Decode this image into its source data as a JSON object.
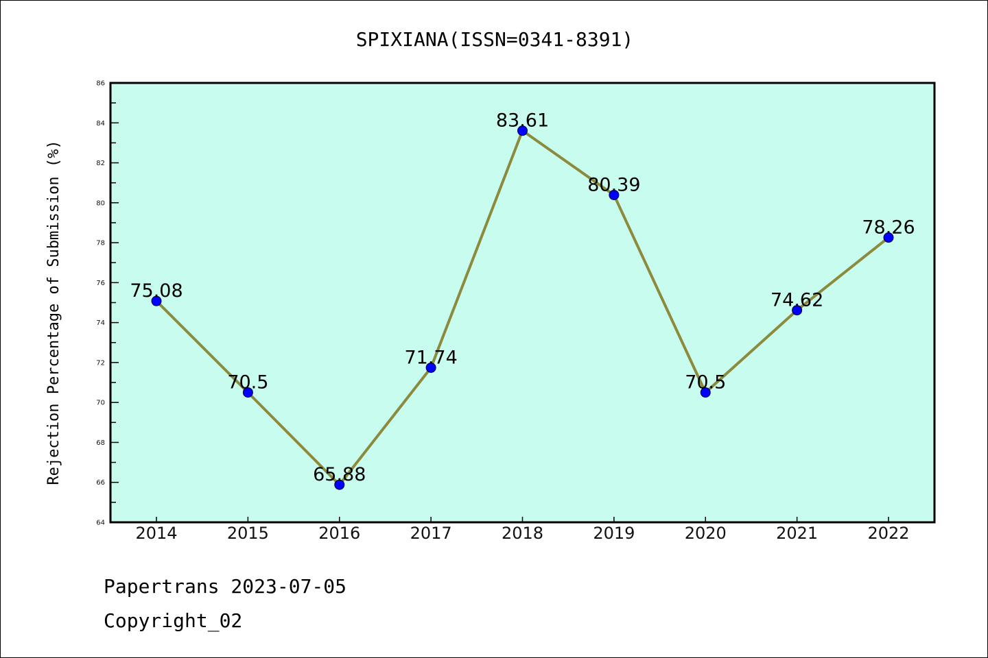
{
  "chart_data": {
    "type": "line",
    "title": "SPIXIANA(ISSN=0341-8391)",
    "xlabel": "",
    "ylabel": "Rejection Percentage of Submission (%)",
    "categories": [
      "2014",
      "2015",
      "2016",
      "2017",
      "2018",
      "2019",
      "2020",
      "2021",
      "2022"
    ],
    "values": [
      75.08,
      70.5,
      65.88,
      71.74,
      83.61,
      80.39,
      70.5,
      74.62,
      78.26
    ],
    "data_labels": [
      "75.08",
      "70.5",
      "65.88",
      "71.74",
      "83.61",
      "80.39",
      "70.5",
      "74.62",
      "78.26"
    ],
    "ylim": [
      64,
      86
    ],
    "yticks": [
      "64",
      "66",
      "68",
      "70",
      "72",
      "74",
      "76",
      "78",
      "80",
      "82",
      "84",
      "86"
    ],
    "grid": false,
    "colors": {
      "background": "#c8fcee",
      "line": "#8c8a3c",
      "marker": "#0000ff"
    }
  },
  "footer": {
    "line1": "Papertrans 2023-07-05",
    "line2": "Copyright_02"
  }
}
